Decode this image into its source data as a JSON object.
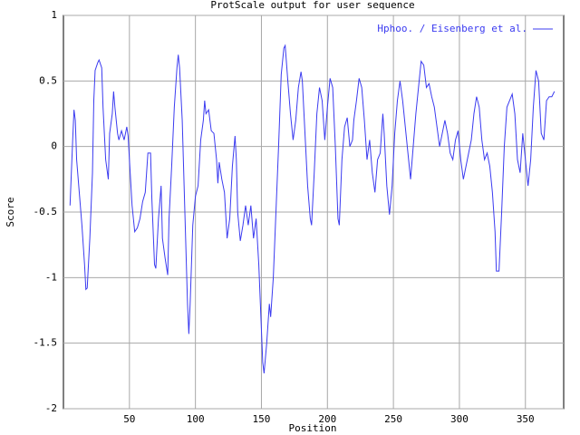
{
  "chart_data": {
    "type": "line",
    "title": "ProtScale output for user sequence",
    "x_label": "Position",
    "y_label": "Score",
    "xlim": [
      0,
      379
    ],
    "ylim": [
      -2,
      1
    ],
    "xticks": [
      50,
      100,
      150,
      200,
      250,
      300,
      350
    ],
    "yticks": [
      -2,
      -1.5,
      -1,
      -0.5,
      0,
      0.5,
      1
    ],
    "grid": true,
    "legend": "upper right",
    "x": [
      5,
      7,
      8,
      9,
      10,
      12,
      14,
      16,
      17,
      18,
      20,
      22,
      23,
      24,
      26,
      27,
      29,
      30,
      32,
      34,
      35,
      37,
      38,
      39,
      41,
      42,
      44,
      46,
      48,
      49,
      50,
      52,
      54,
      56,
      58,
      60,
      62,
      64,
      66,
      67,
      69,
      70,
      72,
      74,
      75,
      77,
      79,
      80,
      82,
      84,
      86,
      87,
      88,
      90,
      92,
      94,
      95,
      96,
      98,
      100,
      102,
      104,
      106,
      107,
      108,
      110,
      112,
      114,
      116,
      117,
      118,
      120,
      122,
      124,
      126,
      128,
      130,
      131,
      132,
      134,
      136,
      138,
      140,
      142,
      144,
      146,
      148,
      150,
      151,
      152,
      154,
      156,
      157,
      159,
      161,
      163,
      165,
      167,
      168,
      170,
      172,
      174,
      176,
      178,
      180,
      181,
      183,
      185,
      187,
      188,
      190,
      192,
      194,
      196,
      198,
      200,
      202,
      204,
      206,
      208,
      209,
      211,
      213,
      215,
      217,
      219,
      220,
      222,
      224,
      226,
      228,
      230,
      232,
      234,
      236,
      238,
      240,
      242,
      243,
      245,
      247,
      249,
      251,
      253,
      255,
      257,
      259,
      261,
      263,
      265,
      267,
      269,
      271,
      273,
      275,
      277,
      279,
      281,
      283,
      285,
      287,
      289,
      291,
      293,
      295,
      297,
      299,
      301,
      303,
      305,
      307,
      309,
      311,
      313,
      315,
      317,
      319,
      321,
      323,
      325,
      327,
      328,
      330,
      332,
      334,
      336,
      338,
      340,
      342,
      344,
      346,
      348,
      350,
      352,
      354,
      356,
      358,
      360,
      362,
      364,
      366,
      368,
      370,
      372
    ],
    "series": [
      {
        "name": "Hphoo. / Eisenberg et al.",
        "color": "#3b3bf0",
        "values": [
          -0.45,
          0.05,
          0.28,
          0.2,
          -0.1,
          -0.35,
          -0.6,
          -0.9,
          -1.09,
          -1.08,
          -0.7,
          -0.2,
          0.35,
          0.58,
          0.64,
          0.66,
          0.6,
          0.3,
          -0.1,
          -0.25,
          0.1,
          0.25,
          0.42,
          0.3,
          0.1,
          0.05,
          0.12,
          0.05,
          0.15,
          0.08,
          -0.1,
          -0.45,
          -0.65,
          -0.62,
          -0.55,
          -0.42,
          -0.35,
          -0.05,
          -0.05,
          -0.4,
          -0.9,
          -0.93,
          -0.55,
          -0.3,
          -0.7,
          -0.85,
          -0.98,
          -0.55,
          -0.15,
          0.3,
          0.6,
          0.7,
          0.6,
          0.2,
          -0.5,
          -1.2,
          -1.43,
          -1.2,
          -0.6,
          -0.38,
          -0.3,
          0.05,
          0.2,
          0.35,
          0.25,
          0.28,
          0.12,
          0.1,
          -0.1,
          -0.28,
          -0.12,
          -0.25,
          -0.35,
          -0.7,
          -0.55,
          -0.15,
          0.08,
          -0.1,
          -0.5,
          -0.72,
          -0.6,
          -0.45,
          -0.6,
          -0.45,
          -0.7,
          -0.55,
          -0.9,
          -1.4,
          -1.65,
          -1.73,
          -1.5,
          -1.2,
          -1.3,
          -1.0,
          -0.5,
          0.0,
          0.55,
          0.75,
          0.77,
          0.5,
          0.25,
          0.05,
          0.2,
          0.45,
          0.57,
          0.5,
          0.1,
          -0.3,
          -0.55,
          -0.6,
          -0.2,
          0.25,
          0.45,
          0.35,
          0.05,
          0.3,
          0.52,
          0.45,
          0.0,
          -0.55,
          -0.6,
          -0.1,
          0.15,
          0.22,
          0.0,
          0.05,
          0.2,
          0.35,
          0.52,
          0.45,
          0.2,
          -0.1,
          0.05,
          -0.2,
          -0.35,
          -0.1,
          -0.05,
          0.25,
          0.1,
          -0.3,
          -0.52,
          -0.3,
          0.1,
          0.35,
          0.5,
          0.35,
          0.15,
          -0.05,
          -0.25,
          0.0,
          0.25,
          0.45,
          0.65,
          0.62,
          0.45,
          0.48,
          0.38,
          0.3,
          0.15,
          0.0,
          0.1,
          0.2,
          0.1,
          -0.05,
          -0.1,
          0.05,
          0.12,
          -0.1,
          -0.25,
          -0.15,
          -0.05,
          0.05,
          0.25,
          0.38,
          0.3,
          0.05,
          -0.1,
          -0.05,
          -0.15,
          -0.35,
          -0.65,
          -0.95,
          -0.95,
          -0.5,
          0.0,
          0.3,
          0.35,
          0.4,
          0.25,
          -0.1,
          -0.2,
          0.1,
          -0.1,
          -0.3,
          -0.1,
          0.3,
          0.58,
          0.5,
          0.1,
          0.05,
          0.35,
          0.38,
          0.38,
          0.42
        ]
      }
    ]
  }
}
